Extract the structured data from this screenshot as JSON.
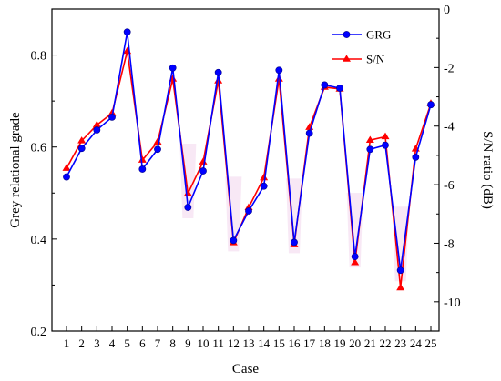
{
  "chart_data": {
    "type": "line",
    "xlabel": "Case",
    "ylabel_left": "Grey relational grade",
    "ylabel_right": "S/N ratio (dB)",
    "x": [
      1,
      2,
      3,
      4,
      5,
      6,
      7,
      8,
      9,
      10,
      11,
      12,
      13,
      14,
      15,
      16,
      17,
      18,
      19,
      20,
      21,
      22,
      23,
      24,
      25
    ],
    "x_tick_labels": [
      "1",
      "2",
      "3",
      "4",
      "5",
      "6",
      "7",
      "8",
      "9",
      "10",
      "11",
      "12",
      "13",
      "14",
      "15",
      "16",
      "17",
      "18",
      "19",
      "20",
      "21",
      "22",
      "23",
      "24",
      "25"
    ],
    "ylim_left": [
      0.2,
      0.9
    ],
    "yticks_left": [
      0.2,
      0.4,
      0.6,
      0.8
    ],
    "ytick_labels_left": [
      "0.2",
      "0.4",
      "0.6",
      "0.8"
    ],
    "ylim_right": [
      -11,
      0
    ],
    "yticks_right": [
      -10,
      -8,
      -6,
      -4,
      -2,
      0
    ],
    "ytick_labels_right": [
      "-10",
      "-8",
      "-6",
      "-4",
      "-2",
      "0"
    ],
    "legend_position": "top-right",
    "grid": false,
    "series": [
      {
        "name": "GRG",
        "axis": "left",
        "color": "#0000ff",
        "marker": "circle",
        "values": [
          0.535,
          0.597,
          0.637,
          0.665,
          0.85,
          0.552,
          0.595,
          0.772,
          0.469,
          0.548,
          0.762,
          0.397,
          0.461,
          0.515,
          0.767,
          0.393,
          0.63,
          0.735,
          0.728,
          0.362,
          0.595,
          0.604,
          0.332,
          0.578,
          0.692
        ]
      },
      {
        "name": "S/N",
        "axis": "right",
        "color": "#ff0000",
        "marker": "triangle",
        "values": [
          -5.44,
          -4.5,
          -3.96,
          -3.56,
          -1.44,
          -5.16,
          -4.54,
          -2.39,
          -6.3,
          -5.22,
          -2.45,
          -7.98,
          -6.78,
          -5.76,
          -2.39,
          -8.05,
          -4.04,
          -2.67,
          -2.73,
          -8.66,
          -4.48,
          -4.36,
          -9.52,
          -4.78,
          -3.23
        ]
      }
    ]
  }
}
